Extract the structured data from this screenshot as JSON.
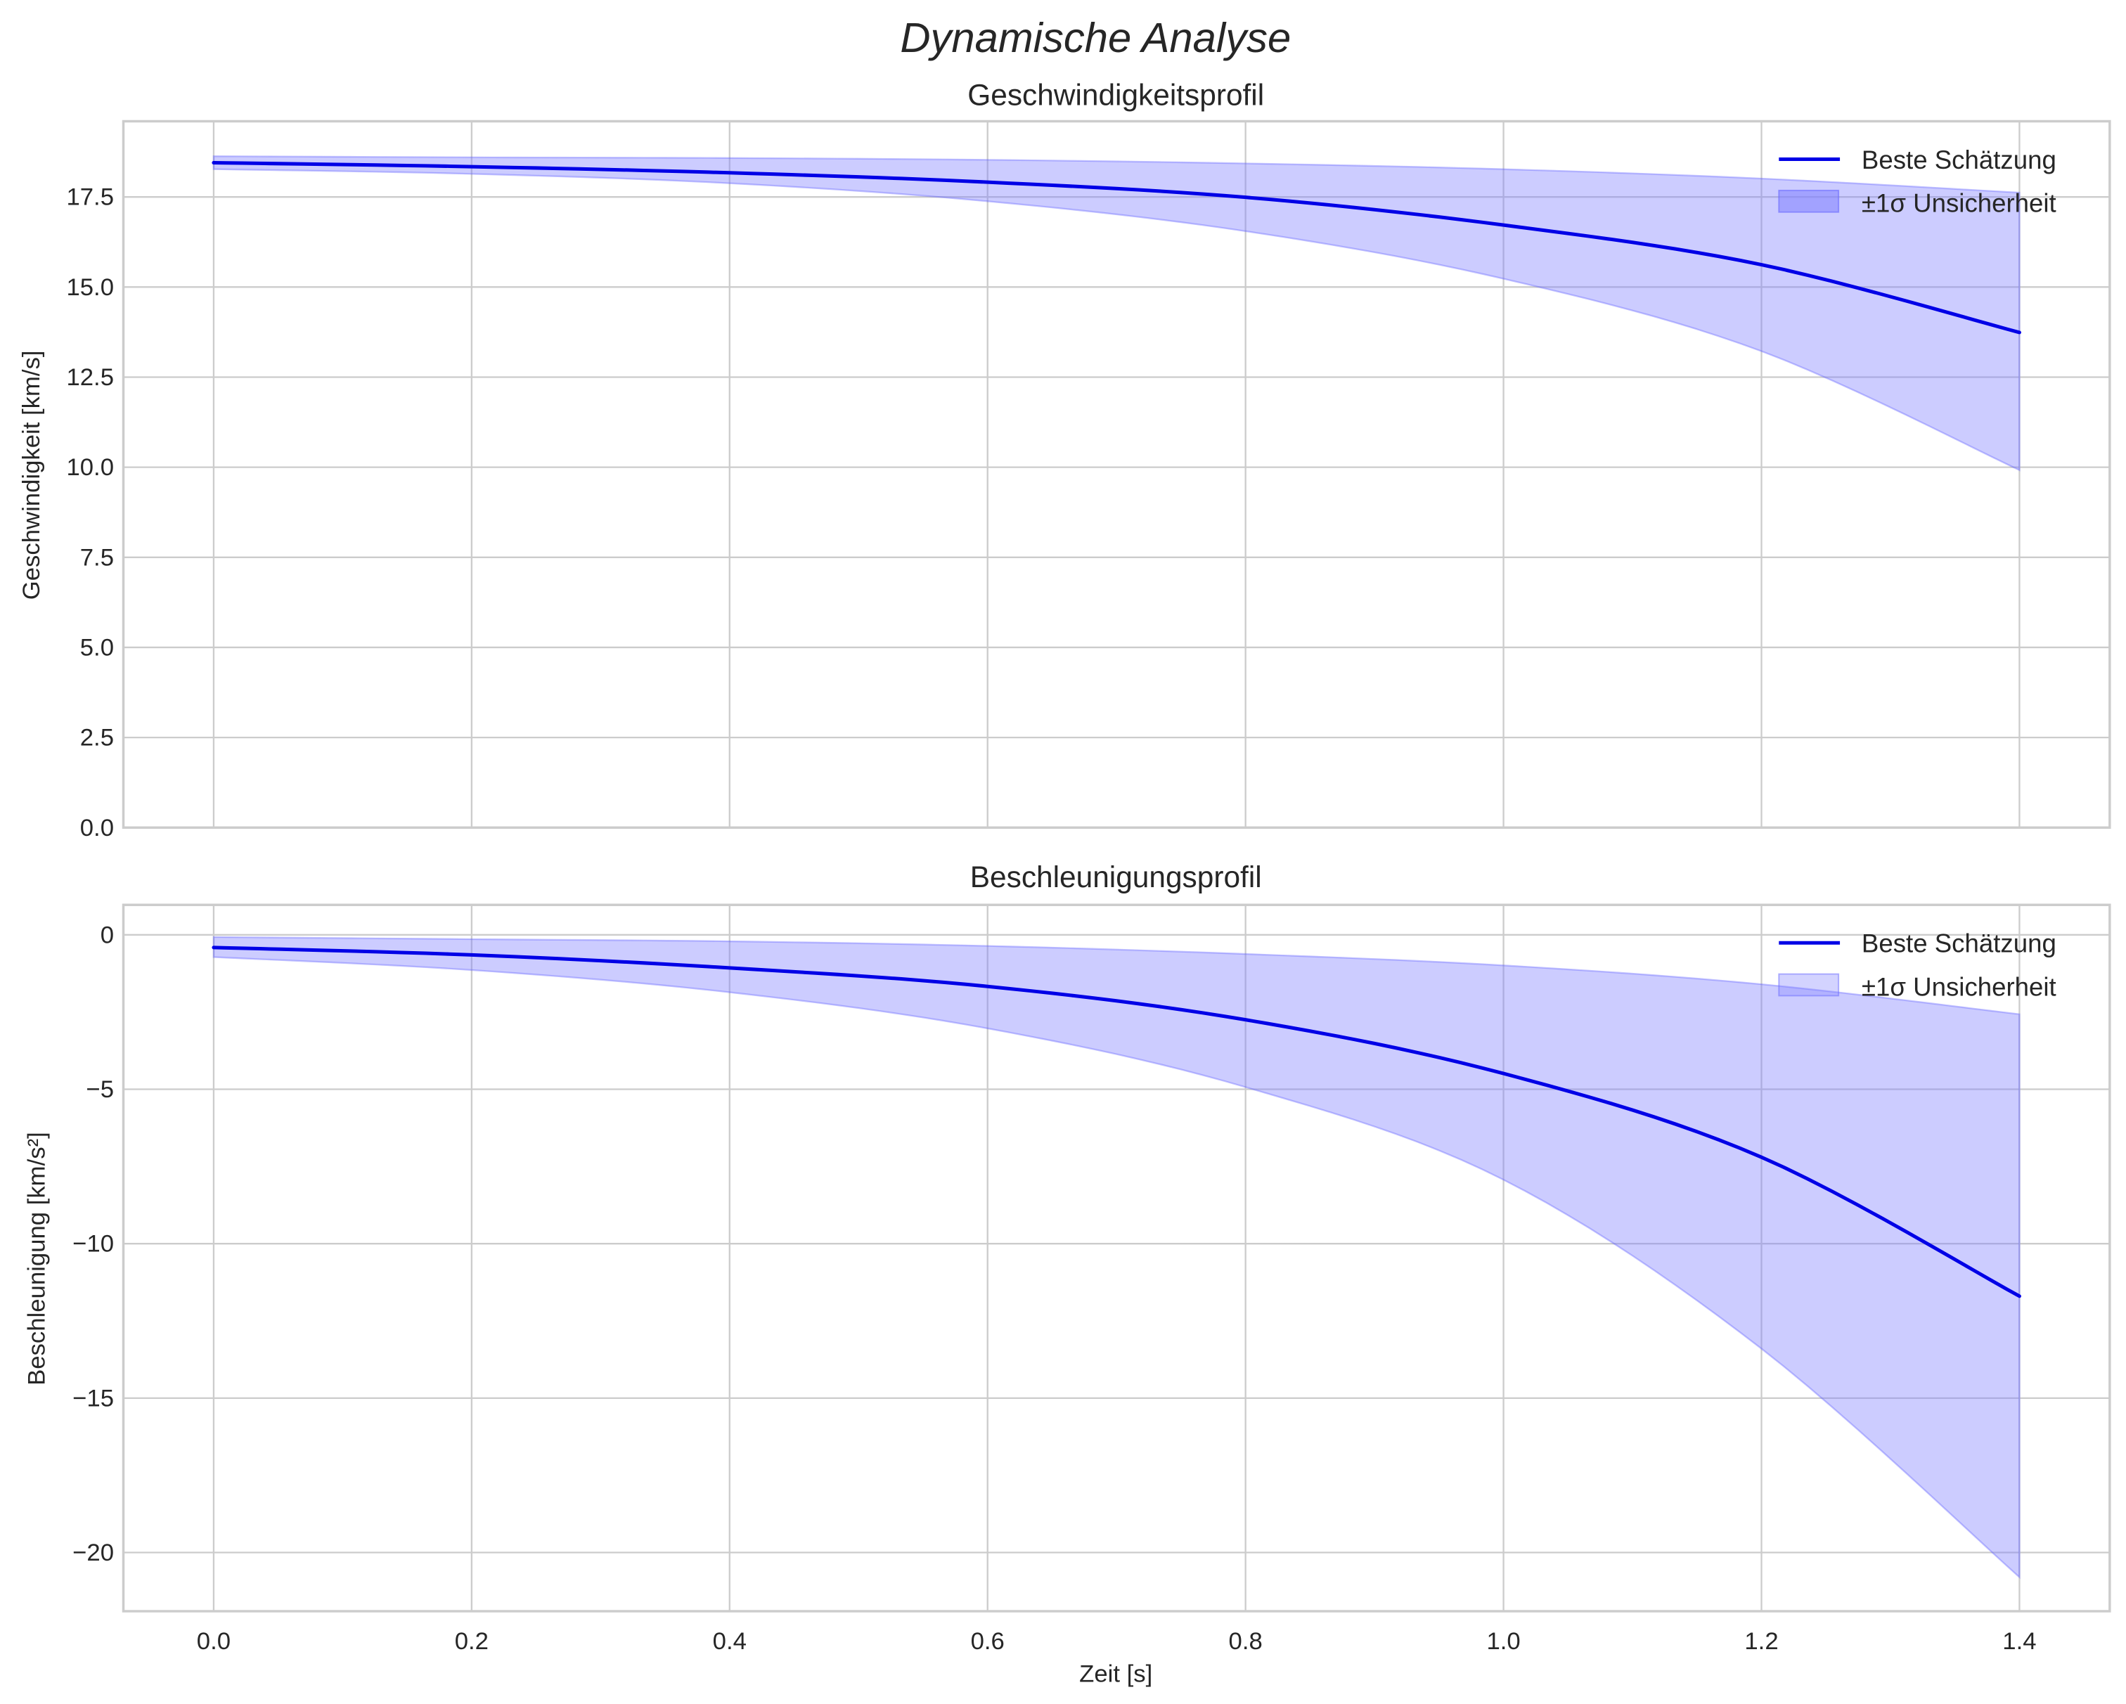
{
  "figure": {
    "suptitle": "Dynamische Analyse"
  },
  "colors": {
    "line": "#0000e6",
    "band_fill": "#8080ff",
    "band_alpha": 0.4,
    "grid": "#cccccc",
    "text": "#262626"
  },
  "legend": {
    "line_label": "Beste Schätzung",
    "band_label": "±1σ Unsicherheit"
  },
  "chart_data": [
    {
      "type": "line",
      "title": "Geschwindigkeitsprofil",
      "xlabel": "",
      "ylabel": "Geschwindigkeit [km/s]",
      "xlim": [
        -0.07,
        1.47
      ],
      "ylim": [
        0,
        19.6
      ],
      "xticks": [
        0.0,
        0.2,
        0.4,
        0.6,
        0.8,
        1.0,
        1.2,
        1.4
      ],
      "xtick_labels_visible": false,
      "yticks": [
        0.0,
        2.5,
        5.0,
        7.5,
        10.0,
        12.5,
        15.0,
        17.5
      ],
      "ytick_labels": [
        "0.0",
        "2.5",
        "5.0",
        "7.5",
        "10.0",
        "12.5",
        "15.0",
        "17.5"
      ],
      "grid": true,
      "legend_position": "upper right",
      "x": [
        0.0,
        0.2,
        0.4,
        0.6,
        0.8,
        1.0,
        1.2,
        1.4
      ],
      "series": [
        {
          "name": "Beste Schätzung",
          "kind": "line",
          "values": [
            18.45,
            18.34,
            18.17,
            17.91,
            17.49,
            16.72,
            15.62,
            13.74
          ]
        },
        {
          "name": "±1σ Unsicherheit",
          "kind": "band",
          "upper": [
            18.63,
            18.6,
            18.58,
            18.53,
            18.43,
            18.27,
            18.01,
            17.62
          ],
          "lower": [
            18.27,
            18.14,
            17.88,
            17.38,
            16.55,
            15.23,
            13.22,
            9.92
          ]
        }
      ]
    },
    {
      "type": "line",
      "title": "Beschleunigungsprofil",
      "xlabel": "Zeit [s]",
      "ylabel": "Beschleunigung [km/s²]",
      "xlim": [
        -0.07,
        1.47
      ],
      "ylim": [
        -21.9,
        0.97
      ],
      "xticks": [
        0.0,
        0.2,
        0.4,
        0.6,
        0.8,
        1.0,
        1.2,
        1.4
      ],
      "xtick_labels": [
        "0.0",
        "0.2",
        "0.4",
        "0.6",
        "0.8",
        "1.0",
        "1.2",
        "1.4"
      ],
      "yticks": [
        0,
        -5,
        -10,
        -15,
        -20
      ],
      "ytick_labels": [
        "0",
        "−5",
        "−10",
        "−15",
        "−20"
      ],
      "grid": true,
      "legend_position": "upper right",
      "x": [
        0.0,
        0.2,
        0.4,
        0.6,
        0.8,
        1.0,
        1.2,
        1.4
      ],
      "series": [
        {
          "name": "Beste Schätzung",
          "kind": "line",
          "values": [
            -0.41,
            -0.65,
            -1.07,
            -1.67,
            -2.75,
            -4.49,
            -7.2,
            -11.7
          ]
        },
        {
          "name": "±1σ Unsicherheit",
          "kind": "band",
          "upper": [
            -0.07,
            -0.14,
            -0.21,
            -0.36,
            -0.62,
            -0.99,
            -1.6,
            -2.57
          ],
          "lower": [
            -0.72,
            -1.14,
            -1.86,
            -3.03,
            -4.93,
            -7.93,
            -13.4,
            -20.8
          ]
        }
      ]
    }
  ]
}
